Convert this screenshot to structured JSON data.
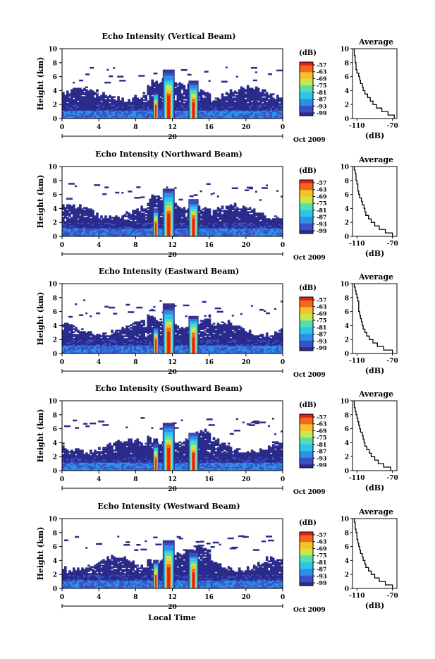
{
  "figure": {
    "xaxis_title": "Local Time",
    "date_label": "Oct 2009",
    "date_day": "20",
    "colorbar_unit": "(dB)",
    "avg_title": "Average",
    "avg_xlabel": "(dB)"
  },
  "colors": {
    "background_band": "#2e3192",
    "colormap": [
      "#2b2b8c",
      "#3a52c8",
      "#2f8fe6",
      "#2ec6e8",
      "#55dfb0",
      "#c7e84a",
      "#f6c02a",
      "#f06a1c",
      "#e0201c"
    ]
  },
  "chart_data": [
    {
      "type": "heatmap",
      "title": "Echo Intensity (Vertical Beam)",
      "ylabel": "Height (km)",
      "xlabel": "Local Time",
      "x_ticks": [
        "0",
        "4",
        "8",
        "12",
        "16",
        "20",
        "0"
      ],
      "y_ticks": [
        "0",
        "2",
        "4",
        "6",
        "8",
        "10"
      ],
      "xlim": [
        0,
        24
      ],
      "ylim": [
        0,
        10
      ],
      "colorbar": {
        "unit": "(dB)",
        "ticks": [
          "-57",
          "-63",
          "-69",
          "-75",
          "-81",
          "-87",
          "-93",
          "-99"
        ]
      },
      "average_profile": {
        "title": "Average",
        "xlabel": "(dB)",
        "x_ticks": [
          "-110",
          "-70"
        ],
        "xlim": [
          -115,
          -65
        ],
        "y_ticks": [
          "0",
          "2",
          "4",
          "6",
          "8",
          "10"
        ],
        "ylim": [
          0,
          10
        ],
        "heights": [
          0,
          0.5,
          1,
          1.5,
          2,
          2.5,
          3,
          3.5,
          4,
          4.5,
          5,
          5.5,
          6,
          6.5,
          7,
          7.5,
          8,
          8.5,
          9,
          9.5
        ],
        "values": [
          -68,
          -75,
          -82,
          -88,
          -92,
          -95,
          -98,
          -101,
          -103,
          -104,
          -106,
          -107,
          -108,
          -110,
          -111,
          -111,
          -112,
          -112,
          -113,
          -113
        ]
      }
    },
    {
      "type": "heatmap",
      "title": "Echo Intensity (Northward Beam)",
      "ylabel": "Height (km)",
      "xlabel": "Local Time",
      "x_ticks": [
        "0",
        "4",
        "8",
        "12",
        "16",
        "20",
        "0"
      ],
      "y_ticks": [
        "0",
        "2",
        "4",
        "6",
        "8",
        "10"
      ],
      "xlim": [
        0,
        24
      ],
      "ylim": [
        0,
        10
      ],
      "colorbar": {
        "unit": "(dB)",
        "ticks": [
          "-57",
          "-63",
          "-69",
          "-75",
          "-81",
          "-87",
          "-93",
          "-99"
        ]
      },
      "average_profile": {
        "title": "Average",
        "xlabel": "(dB)",
        "x_ticks": [
          "-110",
          "-70"
        ],
        "xlim": [
          -115,
          -65
        ],
        "y_ticks": [
          "0",
          "2",
          "4",
          "6",
          "8",
          "10"
        ],
        "ylim": [
          0,
          10
        ],
        "heights": [
          0,
          0.5,
          1,
          1.5,
          2,
          2.5,
          3,
          3.5,
          4,
          4.5,
          5,
          5.5,
          6,
          6.5,
          7,
          7.5,
          8,
          8.5,
          9,
          9.5
        ],
        "values": [
          -70,
          -78,
          -85,
          -90,
          -94,
          -97,
          -100,
          -101,
          -102,
          -104,
          -105,
          -107,
          -108,
          -109,
          -109,
          -110,
          -111,
          -111,
          -112,
          -113
        ]
      }
    },
    {
      "type": "heatmap",
      "title": "Echo Intensity (Eastward Beam)",
      "ylabel": "Height (km)",
      "xlabel": "Local Time",
      "x_ticks": [
        "0",
        "4",
        "8",
        "12",
        "16",
        "20",
        "0"
      ],
      "y_ticks": [
        "0",
        "2",
        "4",
        "6",
        "8",
        "10"
      ],
      "xlim": [
        0,
        24
      ],
      "ylim": [
        0,
        10
      ],
      "colorbar": {
        "unit": "(dB)",
        "ticks": [
          "-57",
          "-63",
          "-69",
          "-75",
          "-81",
          "-87",
          "-93",
          "-99"
        ]
      },
      "average_profile": {
        "title": "Average",
        "xlabel": "(dB)",
        "x_ticks": [
          "-110",
          "-70"
        ],
        "xlim": [
          -115,
          -65
        ],
        "y_ticks": [
          "0",
          "2",
          "4",
          "6",
          "8",
          "10"
        ],
        "ylim": [
          0,
          10
        ],
        "heights": [
          0,
          0.5,
          1,
          1.5,
          2,
          2.5,
          3,
          3.5,
          4,
          4.5,
          5,
          5.5,
          6,
          6.5,
          7,
          7.5,
          8,
          8.5,
          9,
          9.5
        ],
        "values": [
          -70,
          -80,
          -87,
          -92,
          -96,
          -99,
          -101,
          -103,
          -104,
          -105,
          -106,
          -107,
          -108,
          -108,
          -108,
          -109,
          -110,
          -111,
          -112,
          -113
        ]
      }
    },
    {
      "type": "heatmap",
      "title": "Echo Intensity (Southward Beam)",
      "ylabel": "Height (km)",
      "xlabel": "Local Time",
      "x_ticks": [
        "0",
        "4",
        "8",
        "12",
        "16",
        "20",
        "0"
      ],
      "y_ticks": [
        "0",
        "2",
        "4",
        "6",
        "8",
        "10"
      ],
      "xlim": [
        0,
        24
      ],
      "ylim": [
        0,
        10
      ],
      "colorbar": {
        "unit": "(dB)",
        "ticks": [
          "-57",
          "-63",
          "-69",
          "-75",
          "-81",
          "-87",
          "-93",
          "-99"
        ]
      },
      "average_profile": {
        "title": "Average",
        "xlabel": "(dB)",
        "x_ticks": [
          "-110",
          "-70"
        ],
        "xlim": [
          -115,
          -65
        ],
        "y_ticks": [
          "0",
          "2",
          "4",
          "6",
          "8",
          "10"
        ],
        "ylim": [
          0,
          10
        ],
        "heights": [
          0,
          0.5,
          1,
          1.5,
          2,
          2.5,
          3,
          3.5,
          4,
          4.5,
          5,
          5.5,
          6,
          6.5,
          7,
          7.5,
          8,
          8.5,
          9,
          9.5
        ],
        "values": [
          -72,
          -80,
          -86,
          -90,
          -94,
          -96,
          -99,
          -101,
          -102,
          -103,
          -104,
          -106,
          -107,
          -108,
          -109,
          -110,
          -111,
          -112,
          -113,
          -113
        ]
      }
    },
    {
      "type": "heatmap",
      "title": "Echo Intensity (Westward Beam)",
      "ylabel": "Height (km)",
      "xlabel": "Local Time",
      "x_ticks": [
        "0",
        "4",
        "8",
        "12",
        "16",
        "20",
        "0"
      ],
      "y_ticks": [
        "0",
        "2",
        "4",
        "6",
        "8",
        "10"
      ],
      "xlim": [
        0,
        24
      ],
      "ylim": [
        0,
        10
      ],
      "colorbar": {
        "unit": "(dB)",
        "ticks": [
          "-57",
          "-63",
          "-69",
          "-75",
          "-81",
          "-87",
          "-93",
          "-99"
        ]
      },
      "average_profile": {
        "title": "Average",
        "xlabel": "(dB)",
        "x_ticks": [
          "-110",
          "-70"
        ],
        "xlim": [
          -115,
          -65
        ],
        "y_ticks": [
          "0",
          "2",
          "4",
          "6",
          "8",
          "10"
        ],
        "ylim": [
          0,
          10
        ],
        "heights": [
          0,
          0.5,
          1,
          1.5,
          2,
          2.5,
          3,
          3.5,
          4,
          4.5,
          5,
          5.5,
          6,
          6.5,
          7,
          7.5,
          8,
          8.5,
          9,
          9.5
        ],
        "values": [
          -70,
          -78,
          -85,
          -90,
          -94,
          -97,
          -100,
          -101,
          -103,
          -104,
          -106,
          -107,
          -108,
          -109,
          -110,
          -110,
          -111,
          -112,
          -112,
          -113
        ]
      }
    }
  ]
}
